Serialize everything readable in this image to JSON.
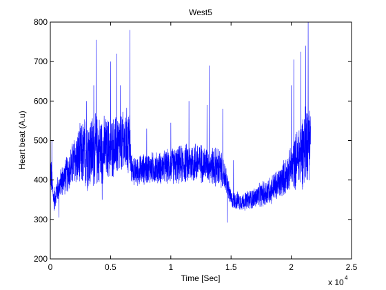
{
  "chart_data": {
    "type": "line",
    "title": "West5",
    "xlabel": "Time [Sec]",
    "ylabel": "Heart beat (A.u)",
    "x_multiplier_label": "x 10",
    "x_multiplier_exponent": "4",
    "xlim": [
      0,
      2.5
    ],
    "ylim": [
      200,
      800
    ],
    "xticks": [
      0,
      0.5,
      1,
      1.5,
      2,
      2.5
    ],
    "xtick_labels": [
      "0",
      "0.5",
      "1",
      "1.5",
      "2",
      "2.5"
    ],
    "yticks": [
      200,
      300,
      400,
      500,
      600,
      700,
      800
    ],
    "ytick_labels": [
      "200",
      "300",
      "400",
      "500",
      "600",
      "700",
      "800"
    ],
    "grid": false,
    "legend": "none",
    "line_color": "#0000ff",
    "series_profile": {
      "x": [
        0,
        0.03,
        0.05,
        0.1,
        0.15,
        0.2,
        0.3,
        0.4,
        0.5,
        0.6,
        0.66,
        0.67,
        0.7,
        0.8,
        0.9,
        1.0,
        1.1,
        1.2,
        1.3,
        1.4,
        1.45,
        1.5,
        1.6,
        1.7,
        1.8,
        1.9,
        2.0,
        2.1,
        2.16
      ],
      "center": [
        430,
        345,
        370,
        400,
        420,
        450,
        470,
        475,
        480,
        490,
        500,
        430,
        420,
        430,
        430,
        435,
        440,
        445,
        440,
        430,
        410,
        350,
        345,
        355,
        370,
        390,
        430,
        480,
        520
      ],
      "spread": [
        60,
        30,
        35,
        45,
        55,
        70,
        110,
        100,
        85,
        90,
        100,
        40,
        40,
        45,
        45,
        50,
        55,
        60,
        50,
        60,
        40,
        25,
        25,
        30,
        40,
        45,
        60,
        110,
        120
      ]
    },
    "spikes": [
      {
        "x": 0.012,
        "y": 500
      },
      {
        "x": 0.07,
        "y": 305
      },
      {
        "x": 0.3,
        "y": 600
      },
      {
        "x": 0.36,
        "y": 640
      },
      {
        "x": 0.38,
        "y": 755
      },
      {
        "x": 0.43,
        "y": 350
      },
      {
        "x": 0.5,
        "y": 700
      },
      {
        "x": 0.55,
        "y": 720
      },
      {
        "x": 0.58,
        "y": 640
      },
      {
        "x": 0.66,
        "y": 780
      },
      {
        "x": 0.8,
        "y": 530
      },
      {
        "x": 1.0,
        "y": 545
      },
      {
        "x": 1.15,
        "y": 600
      },
      {
        "x": 1.3,
        "y": 590
      },
      {
        "x": 1.32,
        "y": 690
      },
      {
        "x": 1.43,
        "y": 580
      },
      {
        "x": 1.47,
        "y": 292
      },
      {
        "x": 1.52,
        "y": 450
      },
      {
        "x": 2.0,
        "y": 640
      },
      {
        "x": 2.02,
        "y": 705
      },
      {
        "x": 2.08,
        "y": 725
      },
      {
        "x": 2.12,
        "y": 740
      },
      {
        "x": 2.14,
        "y": 800
      }
    ]
  }
}
